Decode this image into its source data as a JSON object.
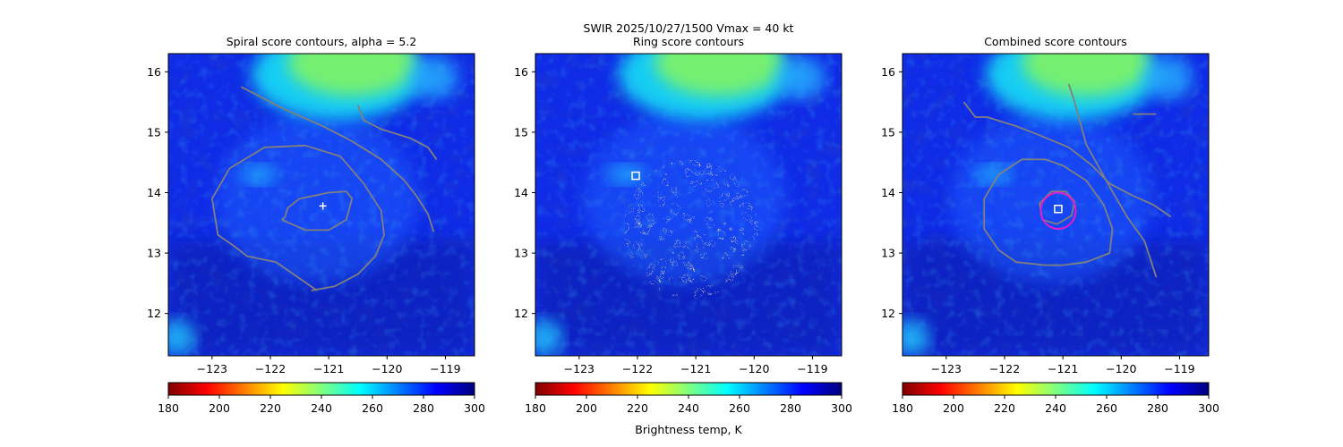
{
  "suptitle_line1": "SWIR  2025/10/27/1500    Vmax = 40 kt",
  "colorbar_label": "Brightness temp, K",
  "colors": {
    "contour": "#808080",
    "combined_ring": "#e01fc9",
    "marker": "#ffffff",
    "cold_cloud": "#7cf26a",
    "background_warm": "#0a1fe0"
  },
  "chart_data": [
    {
      "type": "heatmap",
      "panel": "spiral",
      "title": "Spiral score contours, alpha =  5.2",
      "xlim": [
        -123.75,
        -118.5
      ],
      "ylim": [
        11.3,
        16.3
      ],
      "xticks": [
        -123,
        -122,
        -121,
        -120,
        -119
      ],
      "xticklabels": [
        "−123",
        "−122",
        "−121",
        "−120",
        "−119"
      ],
      "yticks": [
        12,
        13,
        14,
        15,
        16
      ],
      "yticklabels": [
        "12",
        "13",
        "14",
        "15",
        "16"
      ],
      "colorbar": {
        "vmin": 180,
        "vmax": 300,
        "cmap": "jet_r",
        "ticks": [
          180,
          200,
          220,
          240,
          260,
          280,
          300
        ],
        "ticklabels": [
          "180",
          "200",
          "220",
          "240",
          "260",
          "280",
          "300"
        ]
      },
      "marker": {
        "symbol": "plus",
        "lon": -121.1,
        "lat": 13.78
      },
      "contours": [
        {
          "lon": [
            -121.8,
            -121.4,
            -121.0,
            -120.7,
            -120.6,
            -120.7,
            -121.0,
            -121.5,
            -121.7,
            -121.75,
            -121.8
          ],
          "lat": [
            13.55,
            13.38,
            13.38,
            13.55,
            13.9,
            14.02,
            14.0,
            13.9,
            13.75,
            13.6,
            13.55
          ]
        },
        {
          "lon": [
            -121.3,
            -120.9,
            -120.5,
            -120.2,
            -120.05,
            -120.1,
            -120.4,
            -120.8,
            -121.4,
            -122.1,
            -122.7,
            -123.0,
            -122.9,
            -122.6,
            -122.4,
            -121.9,
            -121.2
          ],
          "lat": [
            12.38,
            12.45,
            12.65,
            12.95,
            13.3,
            13.7,
            14.15,
            14.6,
            14.78,
            14.75,
            14.4,
            13.9,
            13.3,
            13.1,
            12.95,
            12.85,
            12.38
          ]
        },
        {
          "lon": [
            -122.5,
            -121.8,
            -121.1,
            -120.6,
            -120.1,
            -119.7,
            -119.5,
            -119.3,
            -119.2
          ],
          "lat": [
            15.75,
            15.4,
            15.1,
            14.85,
            14.55,
            14.2,
            13.95,
            13.65,
            13.35
          ]
        },
        {
          "lon": [
            -120.5,
            -120.4,
            -120.1,
            -119.6,
            -119.3,
            -119.15
          ],
          "lat": [
            15.45,
            15.2,
            15.05,
            14.9,
            14.75,
            14.55
          ]
        }
      ]
    },
    {
      "type": "heatmap",
      "panel": "ring",
      "title": "Ring score contours",
      "xlim": [
        -123.75,
        -118.5
      ],
      "ylim": [
        11.3,
        16.3
      ],
      "xticks": [
        -123,
        -122,
        -121,
        -120,
        -119
      ],
      "xticklabels": [
        "−123",
        "−122",
        "−121",
        "−120",
        "−119"
      ],
      "yticks": [
        12,
        13,
        14,
        15,
        16
      ],
      "yticklabels": [
        "12",
        "13",
        "14",
        "15",
        "16"
      ],
      "colorbar": {
        "vmin": 180,
        "vmax": 300,
        "cmap": "jet_r",
        "ticks": [
          180,
          200,
          220,
          240,
          260,
          280,
          300
        ],
        "ticklabels": [
          "180",
          "200",
          "220",
          "240",
          "260",
          "280",
          "300"
        ]
      },
      "marker": {
        "symbol": "square",
        "lon": -122.03,
        "lat": 14.28
      },
      "ring_region": {
        "center_lon": -121.08,
        "center_lat": 13.4,
        "radius_deg": 1.15
      }
    },
    {
      "type": "heatmap",
      "panel": "combined",
      "title": "Combined score contours",
      "xlim": [
        -123.75,
        -118.5
      ],
      "ylim": [
        11.3,
        16.3
      ],
      "xticks": [
        -123,
        -122,
        -121,
        -120,
        -119
      ],
      "xticklabels": [
        "−123",
        "−122",
        "−121",
        "−120",
        "−119"
      ],
      "yticks": [
        12,
        13,
        14,
        15,
        16
      ],
      "yticklabels": [
        "12",
        "13",
        "14",
        "15",
        "16"
      ],
      "colorbar": {
        "vmin": 180,
        "vmax": 300,
        "cmap": "jet_r",
        "ticks": [
          180,
          200,
          220,
          240,
          260,
          280,
          300
        ],
        "ticklabels": [
          "180",
          "200",
          "220",
          "240",
          "260",
          "280",
          "300"
        ]
      },
      "marker": {
        "symbol": "square",
        "lon": -121.08,
        "lat": 13.73
      },
      "highlight_ring": {
        "center_lon": -121.08,
        "center_lat": 13.7,
        "radius_deg": 0.3
      },
      "contours": [
        {
          "lon": [
            -121.35,
            -121.1,
            -120.85,
            -120.8,
            -120.95,
            -121.2,
            -121.4,
            -121.35
          ],
          "lat": [
            13.55,
            13.48,
            13.62,
            13.85,
            14.02,
            14.02,
            13.82,
            13.55
          ]
        },
        {
          "lon": [
            -121.0,
            -120.6,
            -120.2,
            -120.15,
            -120.3,
            -120.6,
            -121.0,
            -121.3,
            -121.7,
            -122.1,
            -122.35,
            -122.35,
            -122.1,
            -121.8,
            -121.3,
            -121.0
          ],
          "lat": [
            12.8,
            12.85,
            13.0,
            13.4,
            13.8,
            14.2,
            14.45,
            14.55,
            14.55,
            14.3,
            13.9,
            13.4,
            13.05,
            12.85,
            12.8,
            12.8
          ]
        },
        {
          "lon": [
            -122.7,
            -122.5,
            -122.3,
            -121.8,
            -121.4,
            -120.9,
            -120.5,
            -120.2,
            -119.8,
            -119.45,
            -119.15
          ],
          "lat": [
            15.5,
            15.25,
            15.25,
            15.1,
            14.95,
            14.75,
            14.45,
            14.15,
            13.95,
            13.8,
            13.6
          ]
        },
        {
          "lon": [
            -120.9,
            -120.8,
            -120.6,
            -120.2,
            -119.9,
            -119.6,
            -119.5,
            -119.4
          ],
          "lat": [
            15.8,
            15.5,
            14.8,
            14.1,
            13.6,
            13.2,
            12.9,
            12.6
          ]
        },
        {
          "lon": [
            -119.8,
            -119.6,
            -119.4
          ],
          "lat": [
            15.3,
            15.3,
            15.3
          ]
        }
      ]
    }
  ]
}
